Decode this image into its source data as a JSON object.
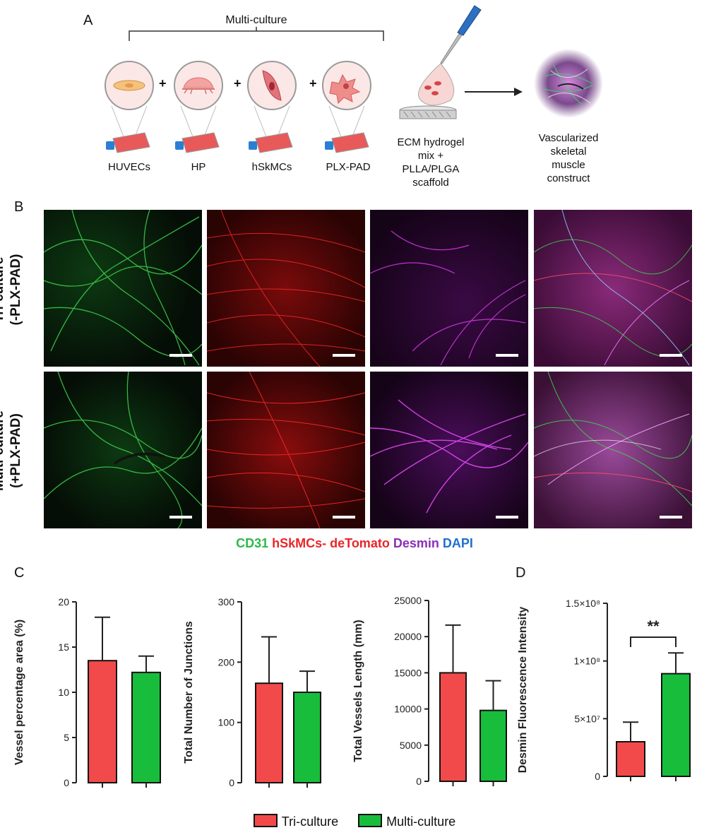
{
  "panels": {
    "a": "A",
    "b": "B",
    "c": "C",
    "d": "D"
  },
  "panel_a": {
    "bracket_label": "Multi-culture",
    "cells": [
      "HUVECs",
      "HP",
      "hSkMCs",
      "PLX-PAD"
    ],
    "plus": "+",
    "mix_label": [
      "ECM hydrogel",
      "mix +",
      "PLLA/PLGA",
      "scaffold"
    ],
    "result_label": [
      "Vascularized",
      "skeletal",
      "muscle",
      "construct"
    ]
  },
  "panel_b": {
    "rows": [
      {
        "line1": "Tri-culture",
        "line2": "(-PLX-PAD)"
      },
      {
        "line1": "Multi-culture",
        "line2": "(+PLX-PAD)"
      }
    ],
    "stains": [
      {
        "text": "CD31",
        "color": "#2eb84a"
      },
      {
        "text": "hSkMCs- deTomato",
        "color": "#e8262a"
      },
      {
        "text": "Desmin",
        "color": "#8a2fb5"
      },
      {
        "text": "DAPI",
        "color": "#1f6fd1"
      }
    ]
  },
  "colors": {
    "tri": "#f24a4a",
    "multi": "#18bd3c"
  },
  "legend": {
    "tri": "Tri-culture",
    "multi": "Multi-culture"
  },
  "chart_data": [
    {
      "type": "bar",
      "categories": [
        "Tri-culture",
        "Multi-culture"
      ],
      "values": [
        13.5,
        12.2
      ],
      "errors": [
        4.8,
        1.8
      ],
      "ylabel": "Vessel percentage area (%)",
      "ylim": [
        0,
        20
      ],
      "yticks": [
        "0",
        "5",
        "10",
        "15",
        "20"
      ],
      "tick_values": [
        0,
        5,
        10,
        15,
        20
      ]
    },
    {
      "type": "bar",
      "categories": [
        "Tri-culture",
        "Multi-culture"
      ],
      "values": [
        165,
        150
      ],
      "errors": [
        77,
        35
      ],
      "ylabel": "Total Number of Junctions",
      "ylim": [
        0,
        300
      ],
      "yticks": [
        "0",
        "100",
        "200",
        "300"
      ],
      "tick_values": [
        0,
        100,
        200,
        300
      ]
    },
    {
      "type": "bar",
      "categories": [
        "Tri-culture",
        "Multi-culture"
      ],
      "values": [
        15000,
        9800
      ],
      "errors": [
        6600,
        4100
      ],
      "ylabel": "Total Vessels Length (mm)",
      "ylim": [
        0,
        25000
      ],
      "yticks": [
        "0",
        "5000",
        "10000",
        "15000",
        "20000",
        "25000"
      ],
      "tick_values": [
        0,
        5000,
        10000,
        15000,
        20000,
        25000
      ]
    },
    {
      "type": "bar",
      "categories": [
        "Tri-culture",
        "Multi-culture"
      ],
      "values": [
        30000000,
        89000000
      ],
      "errors": [
        17000000,
        18000000
      ],
      "ylabel": "Desmin Fluorescence Intensity",
      "ylim": [
        0,
        150000000
      ],
      "yticks": [
        "0",
        "5×10⁷",
        "1×10⁸",
        "1.5×10⁸"
      ],
      "tick_values": [
        0,
        50000000,
        100000000,
        150000000
      ],
      "significance": "**"
    }
  ]
}
